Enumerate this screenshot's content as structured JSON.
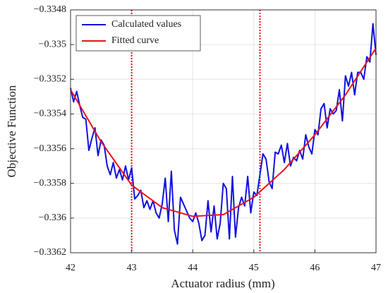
{
  "chart_data": {
    "type": "line",
    "xlabel": "Actuator radius (mm)",
    "ylabel": "Objective Function",
    "xlim": [
      42,
      47
    ],
    "xticks": [
      42,
      43,
      44,
      45,
      46,
      47
    ],
    "ylim": [
      -0.3362,
      -0.3348
    ],
    "yticks": [
      {
        "value": -0.3362,
        "label": "−0.3362"
      },
      {
        "value": -0.336,
        "label": "−0.336"
      },
      {
        "value": -0.3358,
        "label": "−0.3358"
      },
      {
        "value": -0.3356,
        "label": "−0.3356"
      },
      {
        "value": -0.3354,
        "label": "−0.3354"
      },
      {
        "value": -0.3352,
        "label": "−0.3352"
      },
      {
        "value": -0.335,
        "label": "−0.335"
      },
      {
        "value": -0.3348,
        "label": "−0.3348"
      }
    ],
    "grid": true,
    "legend": "upper left",
    "vlines": {
      "values": [
        43,
        45.1
      ],
      "color": "#e8141c"
    },
    "series": [
      {
        "name": "Calculated values",
        "color": "#1010e0",
        "x": [
          42.0,
          42.05,
          42.1,
          42.15,
          42.2,
          42.25,
          42.3,
          42.35,
          42.4,
          42.45,
          42.5,
          42.55,
          42.6,
          42.65,
          42.7,
          42.75,
          42.8,
          42.85,
          42.9,
          42.95,
          43.0,
          43.05,
          43.1,
          43.15,
          43.2,
          43.25,
          43.3,
          43.35,
          43.4,
          43.45,
          43.5,
          43.55,
          43.6,
          43.65,
          43.7,
          43.75,
          43.8,
          43.85,
          43.9,
          43.95,
          44.0,
          44.05,
          44.1,
          44.15,
          44.2,
          44.25,
          44.3,
          44.35,
          44.4,
          44.45,
          44.5,
          44.55,
          44.6,
          44.65,
          44.7,
          44.75,
          44.8,
          44.85,
          44.9,
          44.95,
          45.0,
          45.05,
          45.1,
          45.15,
          45.2,
          45.25,
          45.3,
          45.35,
          45.4,
          45.45,
          45.5,
          45.55,
          45.6,
          45.65,
          45.7,
          45.75,
          45.8,
          45.85,
          45.9,
          45.95,
          46.0,
          46.05,
          46.1,
          46.15,
          46.2,
          46.25,
          46.3,
          46.35,
          46.4,
          46.45,
          46.5,
          46.55,
          46.6,
          46.65,
          46.7,
          46.75,
          46.8,
          46.85,
          46.9,
          46.95,
          47.0
        ],
        "values": [
          -0.33525,
          -0.33533,
          -0.33527,
          -0.33535,
          -0.33542,
          -0.33543,
          -0.33561,
          -0.33554,
          -0.33548,
          -0.33564,
          -0.33555,
          -0.33558,
          -0.3357,
          -0.33575,
          -0.33568,
          -0.33577,
          -0.33572,
          -0.33578,
          -0.3357,
          -0.33578,
          -0.33571,
          -0.33589,
          -0.33587,
          -0.33584,
          -0.33594,
          -0.3359,
          -0.33595,
          -0.3359,
          -0.33597,
          -0.336,
          -0.33592,
          -0.33577,
          -0.33602,
          -0.33573,
          -0.33607,
          -0.33615,
          -0.33588,
          -0.33592,
          -0.33596,
          -0.336,
          -0.33602,
          -0.33597,
          -0.33603,
          -0.33613,
          -0.3361,
          -0.3359,
          -0.33608,
          -0.33593,
          -0.33612,
          -0.33603,
          -0.3358,
          -0.33583,
          -0.33612,
          -0.33576,
          -0.33611,
          -0.33594,
          -0.33588,
          -0.33593,
          -0.33576,
          -0.33597,
          -0.33585,
          -0.33587,
          -0.33575,
          -0.33563,
          -0.33566,
          -0.33579,
          -0.33583,
          -0.33562,
          -0.33563,
          -0.33558,
          -0.33568,
          -0.33557,
          -0.3357,
          -0.33565,
          -0.33567,
          -0.33561,
          -0.33566,
          -0.33552,
          -0.33559,
          -0.33563,
          -0.33549,
          -0.33552,
          -0.33537,
          -0.33534,
          -0.33548,
          -0.33537,
          -0.3354,
          -0.33538,
          -0.33526,
          -0.33544,
          -0.33518,
          -0.33524,
          -0.33516,
          -0.33529,
          -0.33516,
          -0.33516,
          -0.3352,
          -0.33507,
          -0.3351,
          -0.33488,
          -0.33506
        ]
      },
      {
        "name": "Fitted curve",
        "color": "#e8141c",
        "x": [
          42,
          42.5,
          43,
          43.5,
          44,
          44.5,
          45,
          45.5,
          46,
          46.5,
          47
        ],
        "values": [
          -0.33526,
          -0.33556,
          -0.33581,
          -0.33594,
          -0.33599,
          -0.33598,
          -0.33588,
          -0.33572,
          -0.33552,
          -0.33529,
          -0.33502
        ]
      }
    ]
  }
}
